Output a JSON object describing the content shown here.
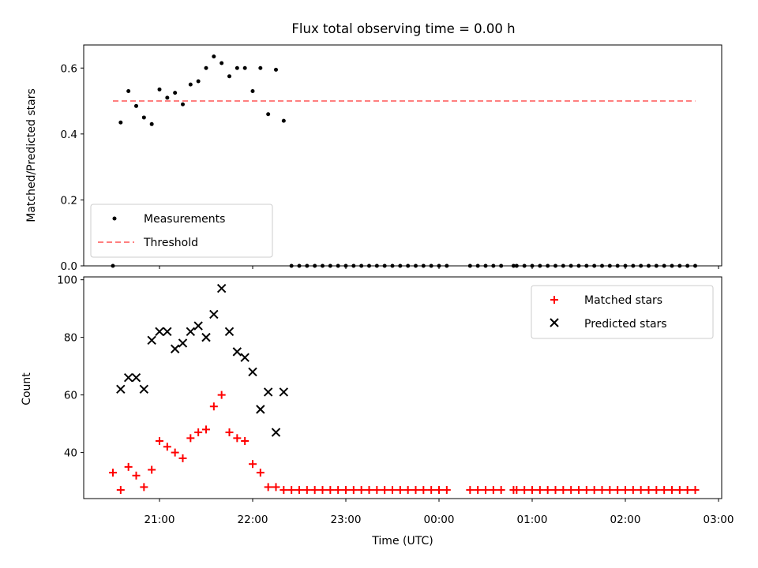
{
  "chart_data": [
    {
      "type": "scatter",
      "title": "Flux total observing time = 0.00 h",
      "ylabel": "Matched/Predicted stars",
      "xlabel": "",
      "ylim": [
        0,
        0.67
      ],
      "yticks": [
        0.0,
        0.2,
        0.4,
        0.6
      ],
      "ytick_labels": [
        "0.0",
        "0.2",
        "0.4",
        "0.6"
      ],
      "legend": {
        "placement": "lower-left",
        "entries": [
          "Measurements",
          "Threshold"
        ]
      },
      "series": [
        {
          "name": "Measurements",
          "style": "dot",
          "color": "#000000",
          "x": [
            "20:30",
            "20:35",
            "20:40",
            "20:45",
            "20:50",
            "20:55",
            "21:00",
            "21:05",
            "21:10",
            "21:15",
            "21:20",
            "21:25",
            "21:30",
            "21:35",
            "21:40",
            "21:45",
            "21:50",
            "21:55",
            "22:00",
            "22:05",
            "22:10",
            "22:15",
            "22:20",
            "22:25",
            "22:30",
            "22:35",
            "22:40",
            "22:45",
            "22:50",
            "22:55",
            "23:00",
            "23:05",
            "23:10",
            "23:15",
            "23:20",
            "23:25",
            "23:30",
            "23:35",
            "23:40",
            "23:45",
            "23:50",
            "23:55",
            "00:00",
            "00:05",
            "00:20",
            "00:25",
            "00:30",
            "00:35",
            "00:40",
            "00:48",
            "00:50",
            "00:55",
            "01:00",
            "01:05",
            "01:10",
            "01:15",
            "01:20",
            "01:25",
            "01:30",
            "01:35",
            "01:40",
            "01:45",
            "01:50",
            "01:55",
            "02:00",
            "02:05",
            "02:10",
            "02:15",
            "02:20",
            "02:25",
            "02:30",
            "02:35",
            "02:40",
            "02:45"
          ],
          "y": [
            0.0,
            0.435,
            0.53,
            0.485,
            0.45,
            0.43,
            0.535,
            0.51,
            0.525,
            0.49,
            0.55,
            0.56,
            0.6,
            0.635,
            0.615,
            0.575,
            0.6,
            0.6,
            0.53,
            0.6,
            0.46,
            0.595,
            0.44,
            0,
            0,
            0,
            0,
            0,
            0,
            0,
            0,
            0,
            0,
            0,
            0,
            0,
            0,
            0,
            0,
            0,
            0,
            0,
            0,
            0,
            0,
            0,
            0,
            0,
            0,
            0,
            0,
            0,
            0,
            0,
            0,
            0,
            0,
            0,
            0,
            0,
            0,
            0,
            0,
            0,
            0,
            0,
            0,
            0,
            0,
            0,
            0,
            0,
            0,
            0
          ]
        },
        {
          "name": "Threshold",
          "style": "dashed-line",
          "color": "#ff7f7f",
          "x": [
            "20:30",
            "02:45"
          ],
          "y": [
            0.5,
            0.5
          ]
        }
      ]
    },
    {
      "type": "scatter",
      "title": "",
      "ylabel": "Count",
      "xlabel": "Time (UTC)",
      "ylim": [
        24,
        101
      ],
      "yticks": [
        40,
        60,
        80,
        100
      ],
      "ytick_labels": [
        "40",
        "60",
        "80",
        "100"
      ],
      "xticks": [
        "21:00",
        "22:00",
        "23:00",
        "00:00",
        "01:00",
        "02:00",
        "03:00"
      ],
      "legend": {
        "placement": "upper-right",
        "entries": [
          "Matched stars",
          "Predicted stars"
        ]
      },
      "series": [
        {
          "name": "Matched stars",
          "style": "plus",
          "color": "#ff0000",
          "x": [
            "20:30",
            "20:35",
            "20:40",
            "20:45",
            "20:50",
            "20:55",
            "21:00",
            "21:05",
            "21:10",
            "21:15",
            "21:20",
            "21:25",
            "21:30",
            "21:35",
            "21:40",
            "21:45",
            "21:50",
            "21:55",
            "22:00",
            "22:05",
            "22:10",
            "22:15",
            "22:20",
            "22:25",
            "22:30",
            "22:35",
            "22:40",
            "22:45",
            "22:50",
            "22:55",
            "23:00",
            "23:05",
            "23:10",
            "23:15",
            "23:20",
            "23:25",
            "23:30",
            "23:35",
            "23:40",
            "23:45",
            "23:50",
            "23:55",
            "00:00",
            "00:05",
            "00:20",
            "00:25",
            "00:30",
            "00:35",
            "00:40",
            "00:48",
            "00:50",
            "00:55",
            "01:00",
            "01:05",
            "01:10",
            "01:15",
            "01:20",
            "01:25",
            "01:30",
            "01:35",
            "01:40",
            "01:45",
            "01:50",
            "01:55",
            "02:00",
            "02:05",
            "02:10",
            "02:15",
            "02:20",
            "02:25",
            "02:30",
            "02:35",
            "02:40",
            "02:45"
          ],
          "y": [
            33,
            27,
            35,
            32,
            28,
            34,
            44,
            42,
            40,
            38,
            45,
            47,
            48,
            56,
            60,
            47,
            45,
            44,
            36,
            33,
            28,
            28,
            27,
            27,
            27,
            27,
            27,
            27,
            27,
            27,
            27,
            27,
            27,
            27,
            27,
            27,
            27,
            27,
            27,
            27,
            27,
            27,
            27,
            27,
            27,
            27,
            27,
            27,
            27,
            27,
            27,
            27,
            27,
            27,
            27,
            27,
            27,
            27,
            27,
            27,
            27,
            27,
            27,
            27,
            27,
            27,
            27,
            27,
            27,
            27,
            27,
            27,
            27,
            27
          ]
        },
        {
          "name": "Predicted stars",
          "style": "x",
          "color": "#000000",
          "x": [
            "20:35",
            "20:40",
            "20:45",
            "20:50",
            "20:55",
            "21:00",
            "21:05",
            "21:10",
            "21:15",
            "21:20",
            "21:25",
            "21:30",
            "21:35",
            "21:40",
            "21:45",
            "21:50",
            "21:55",
            "22:00",
            "22:05",
            "22:10",
            "22:15",
            "22:20"
          ],
          "y": [
            62,
            66,
            66,
            62,
            79,
            82,
            82,
            76,
            78,
            82,
            84,
            80,
            88,
            97,
            82,
            75,
            73,
            68,
            55,
            61,
            47,
            61
          ]
        }
      ]
    }
  ]
}
